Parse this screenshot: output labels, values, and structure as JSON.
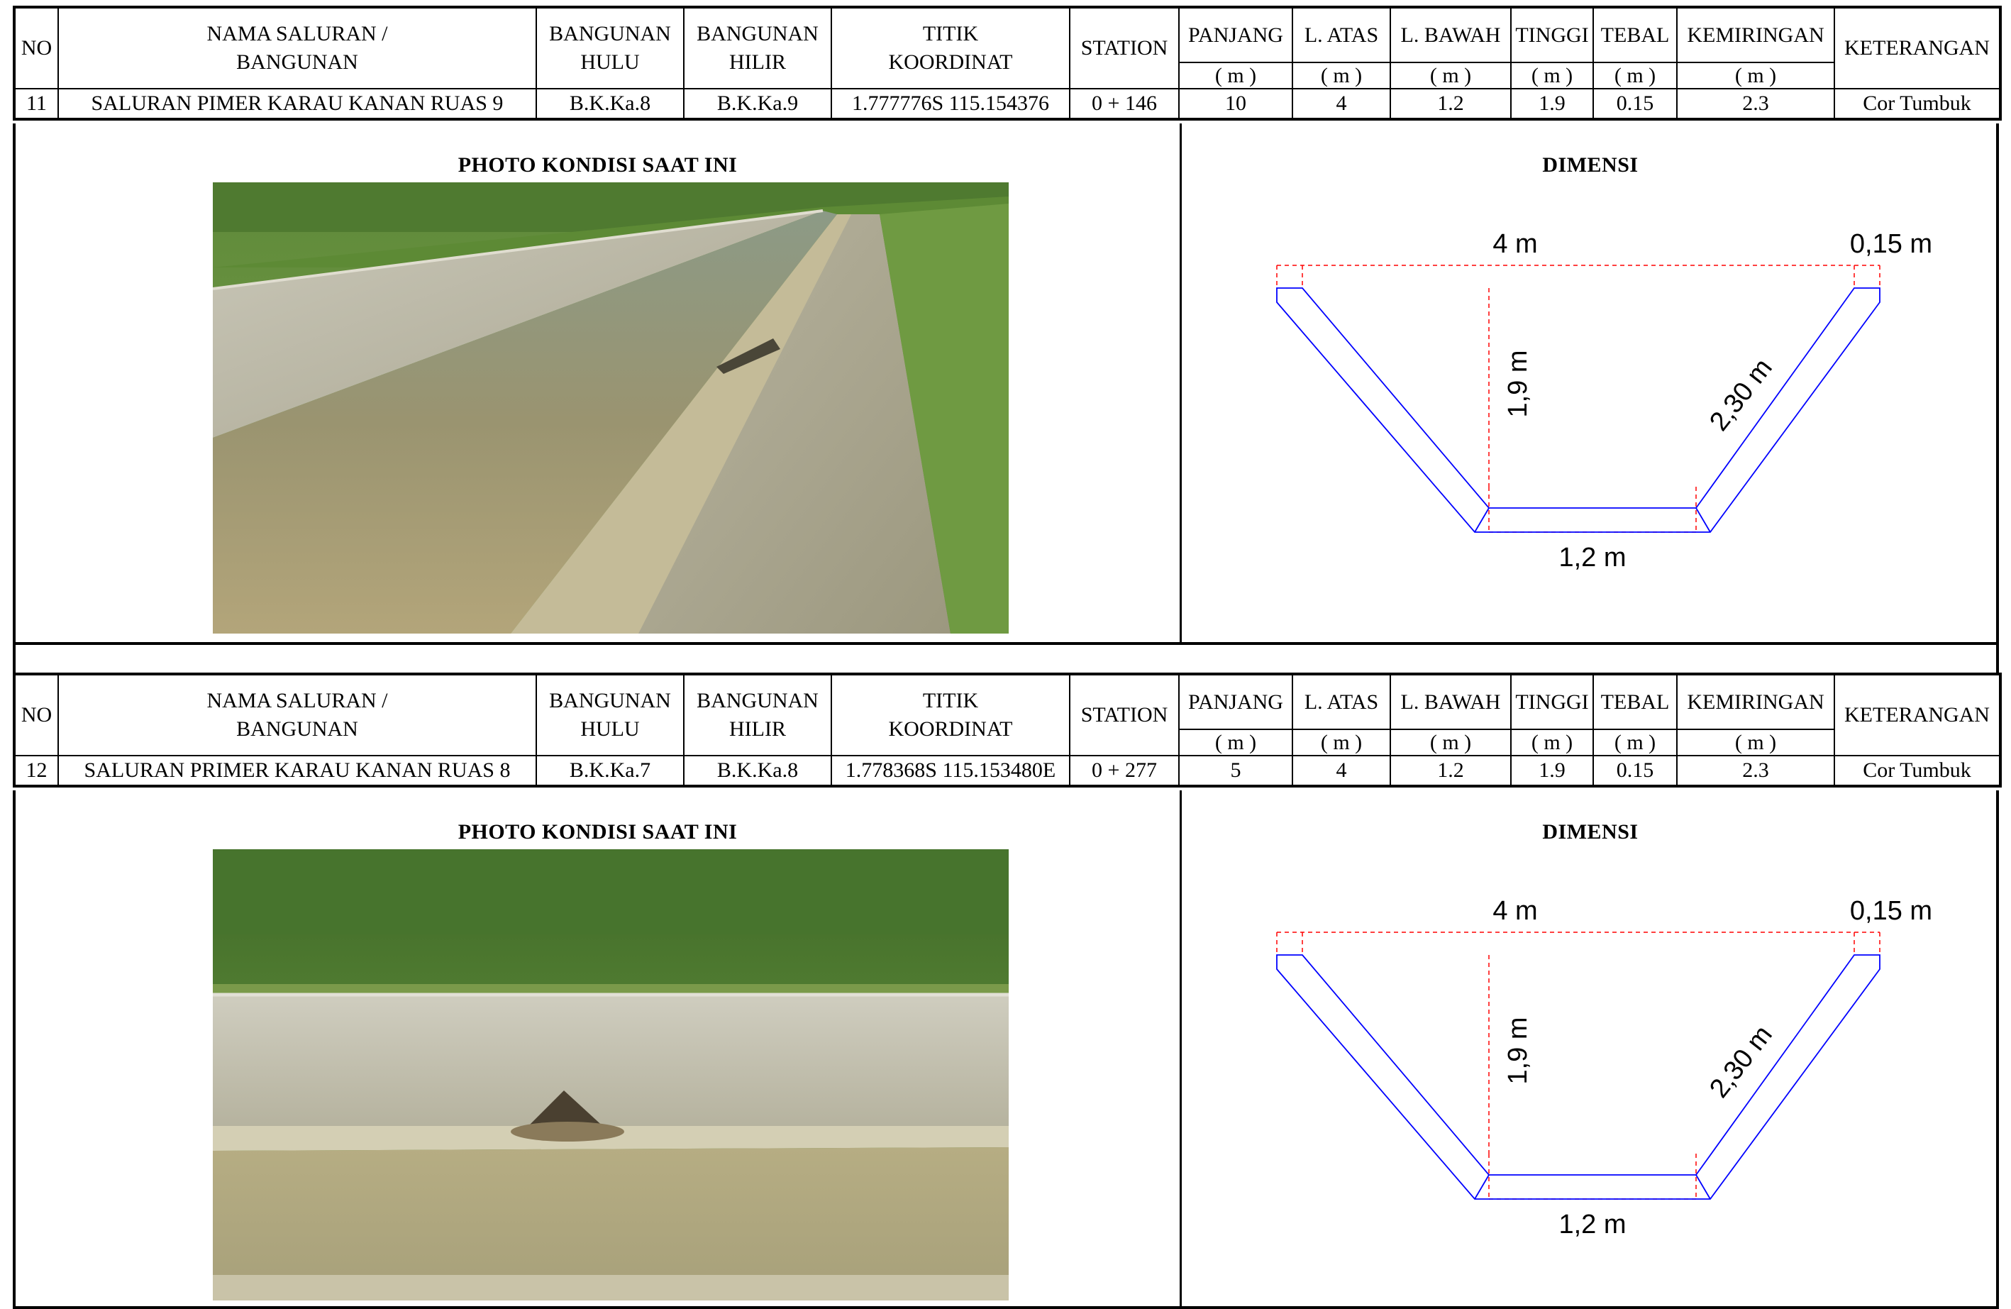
{
  "header": {
    "no": "NO",
    "nama_line1": "NAMA SALURAN /",
    "nama_line2": "BANGUNAN",
    "hulu_line1": "BANGUNAN",
    "hulu_line2": "HULU",
    "hilir_line1": "BANGUNAN",
    "hilir_line2": "HILIR",
    "titik_line1": "TITIK",
    "titik_line2": "KOORDINAT",
    "station": "STATION",
    "panjang": "PANJANG",
    "l_atas": "L. ATAS",
    "l_bawah": "L. BAWAH",
    "tinggi": "TINGGI",
    "tebal": "TEBAL",
    "kemiringan": "KEMIRINGAN",
    "keterangan": "KETERANGAN",
    "unit": "( m )"
  },
  "photo_title": "PHOTO KONDISI SAAT INI",
  "dimension_title": "DIMENSI",
  "entries": [
    {
      "no": "11",
      "nama": "SALURAN PIMER KARAU KANAN RUAS 9",
      "hulu": "B.K.Ka.8",
      "hilir": "B.K.Ka.9",
      "koordinat": "1.777776S 115.154376",
      "station": "0 + 146",
      "panjang": "10",
      "l_atas": "4",
      "l_bawah": "1.2",
      "tinggi": "1.9",
      "tebal": "0.15",
      "kemiringan": "2.3",
      "keterangan": "Cor Tumbuk",
      "dim": {
        "top": "4 m",
        "thickness": "0,15 m",
        "height": "1,9 m",
        "slope": "2,30 m",
        "bottom": "1,2 m"
      }
    },
    {
      "no": "12",
      "nama": "SALURAN PRIMER KARAU KANAN RUAS 8",
      "hulu": "B.K.Ka.7",
      "hilir": "B.K.Ka.8",
      "koordinat": "1.778368S 115.153480E",
      "station": "0 + 277",
      "panjang": "5",
      "l_atas": "4",
      "l_bawah": "1.2",
      "tinggi": "1.9",
      "tebal": "0.15",
      "kemiringan": "2.3",
      "keterangan": "Cor Tumbuk",
      "dim": {
        "top": "4 m",
        "thickness": "0,15 m",
        "height": "1,9 m",
        "slope": "2,30 m",
        "bottom": "1,2 m"
      }
    }
  ],
  "colors": {
    "outline": "#0000ff",
    "dim_line": "#ff0000",
    "border": "#000000"
  }
}
